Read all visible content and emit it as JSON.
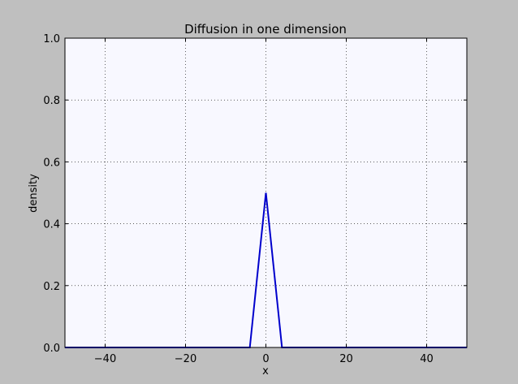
{
  "chart_data": {
    "type": "line",
    "title": "Diffusion in one dimension",
    "xlabel": "x",
    "ylabel": "density",
    "xlim": [
      -50,
      50
    ],
    "ylim": [
      0,
      1
    ],
    "xticks": [
      -40,
      -20,
      0,
      20,
      40
    ],
    "yticks": [
      0.0,
      0.2,
      0.4,
      0.6,
      0.8,
      1.0
    ],
    "xtick_labels": [
      "−40",
      "−20",
      "0",
      "20",
      "40"
    ],
    "ytick_labels": [
      "0.0",
      "0.2",
      "0.4",
      "0.6",
      "0.8",
      "1.0"
    ],
    "grid": true,
    "series": [
      {
        "color": "#0000cc",
        "x": [
          -50,
          -4,
          0,
          4,
          50
        ],
        "y": [
          0,
          0,
          0.5,
          0,
          0
        ]
      }
    ],
    "colors": {
      "figure_background": "#bfbfbf",
      "plot_background": "#f8f8ff",
      "line": "#0000cc"
    }
  }
}
